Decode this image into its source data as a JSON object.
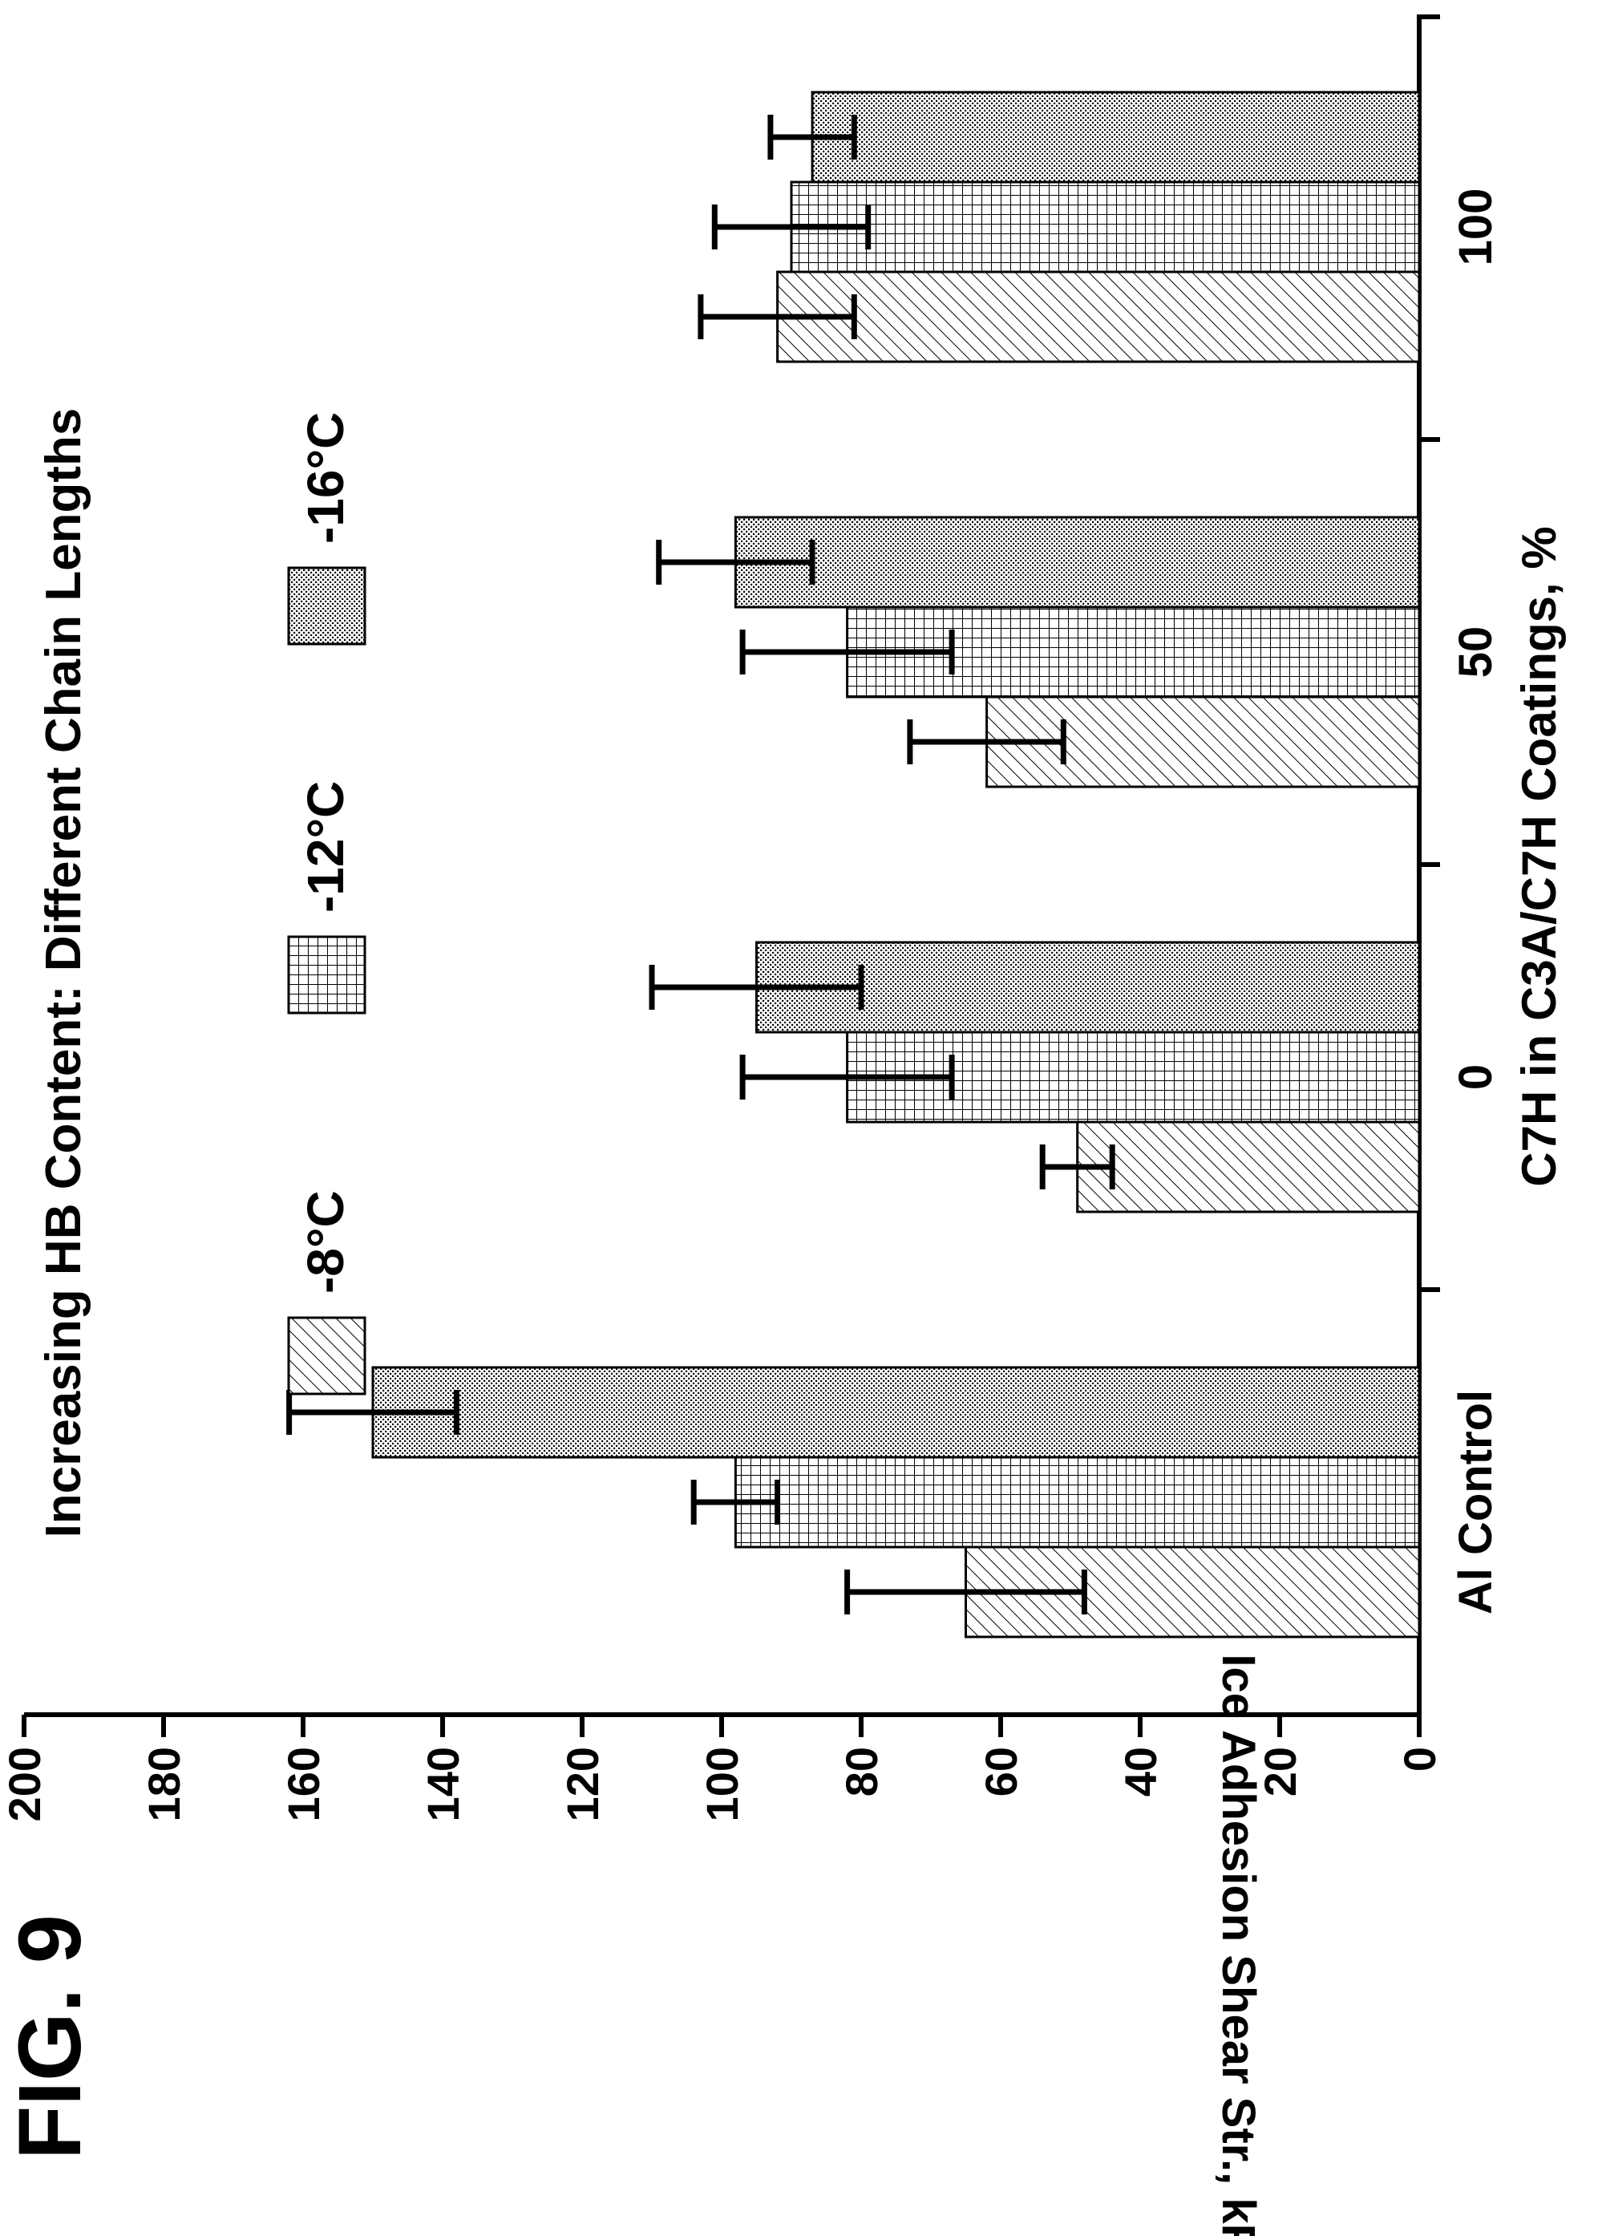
{
  "figure_label": "FIG. 9",
  "chart_data": {
    "type": "bar",
    "orientation": "rotated-90-ccw",
    "title": "Increasing HB Content: Different Chain Lengths",
    "xlabel": "C7H in C3A/C7H Coatings, %",
    "ylabel": "Ice Adhesion Shear Str., kPa",
    "ylim": [
      0,
      200
    ],
    "yticks": [
      "0",
      "20",
      "40",
      "60",
      "80",
      "100",
      "120",
      "140",
      "160",
      "180",
      "200"
    ],
    "categories": [
      "Al Control",
      "0",
      "50",
      "100"
    ],
    "legend_placement": "top",
    "series": [
      {
        "name": "-8°C",
        "pattern": "diagonal-hatch",
        "values": [
          65,
          49,
          62,
          92
        ],
        "errors": [
          17,
          5,
          11,
          11
        ]
      },
      {
        "name": "-12°C",
        "pattern": "grid-hatch",
        "values": [
          98,
          82,
          82,
          90
        ],
        "errors": [
          6,
          15,
          15,
          11
        ]
      },
      {
        "name": "-16°C",
        "pattern": "dots",
        "values": [
          150,
          95,
          98,
          87
        ],
        "errors": [
          12,
          15,
          11,
          6
        ]
      }
    ]
  }
}
